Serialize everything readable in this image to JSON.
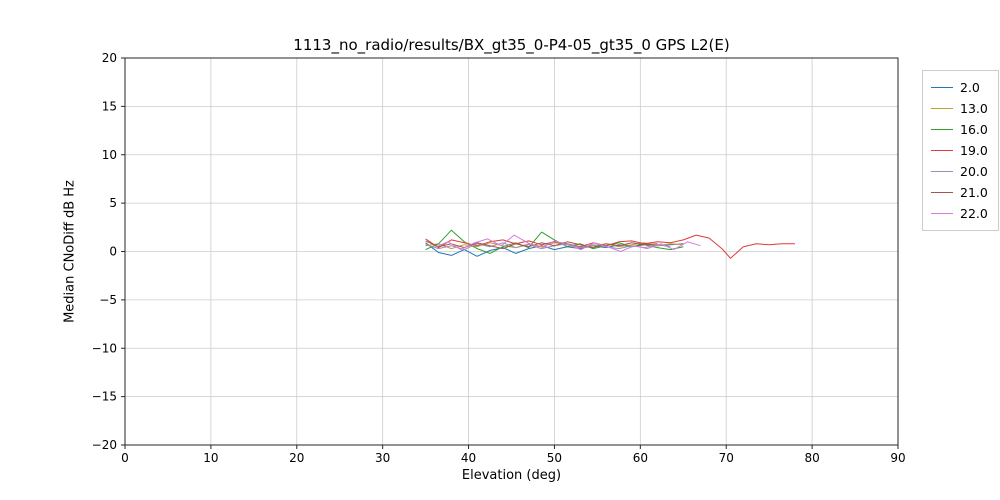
{
  "chart_data": {
    "type": "line",
    "title": "1113_no_radio/results/BX_gt35_0-P4-05_gt35_0 GPS L2(E)",
    "xlabel": "Elevation (deg)",
    "ylabel": "Median CNoDiff dB Hz",
    "xlim": [
      0,
      90
    ],
    "ylim": [
      -20,
      20
    ],
    "xticks": [
      0,
      10,
      20,
      30,
      40,
      50,
      60,
      70,
      80,
      90
    ],
    "yticks": [
      -20,
      -15,
      -10,
      -5,
      0,
      5,
      10,
      15,
      20
    ],
    "grid": true,
    "legend_position": "outside-upper-right",
    "frame_color": "#262626",
    "grid_color": "#cccccc",
    "series": [
      {
        "name": "2.0",
        "color": "#1f77b4",
        "x": [
          35,
          36.5,
          38,
          39.5,
          41,
          42.5,
          44,
          45.5,
          47,
          48.5,
          50,
          51.5,
          53,
          54.5,
          56,
          57.5,
          59,
          60.5,
          62,
          63.5,
          65
        ],
        "y": [
          0.9,
          -0.1,
          -0.4,
          0.2,
          -0.5,
          0.1,
          0.4,
          -0.2,
          0.3,
          0.6,
          0.2,
          0.5,
          0.3,
          0.6,
          0.4,
          0.7,
          0.5,
          0.8,
          0.6,
          0.7,
          0.8
        ]
      },
      {
        "name": "13.0",
        "color": "#bfa035",
        "x": [
          35,
          36.5,
          38,
          39.5,
          41,
          42.5,
          44,
          45.5,
          47,
          48.5,
          50,
          51.5,
          53,
          54.5,
          56,
          57.5,
          59,
          60.5,
          62,
          63.5,
          65
        ],
        "y": [
          0.6,
          0.8,
          0.3,
          0.7,
          0.5,
          0.9,
          0.6,
          0.4,
          0.8,
          0.5,
          0.9,
          0.7,
          0.4,
          0.6,
          0.8,
          0.5,
          0.7,
          0.9,
          0.6,
          0.8,
          0.7
        ]
      },
      {
        "name": "16.0",
        "color": "#2ca02c",
        "x": [
          35,
          36.5,
          38,
          39.5,
          41,
          42.5,
          44,
          45.5,
          47,
          48.5,
          50,
          51.5,
          53,
          54.5,
          56,
          57.5,
          59,
          60.5,
          62,
          63.5,
          65
        ],
        "y": [
          0.2,
          0.8,
          2.2,
          1.0,
          0.3,
          -0.2,
          0.5,
          0.9,
          0.4,
          2.0,
          1.2,
          0.5,
          0.8,
          0.3,
          0.6,
          0.9,
          0.5,
          0.7,
          0.4,
          0.2,
          0.5
        ]
      },
      {
        "name": "19.0",
        "color": "#e03a3a",
        "x": [
          35,
          36.5,
          38,
          39.5,
          41,
          42.5,
          44,
          45.5,
          47,
          48.5,
          50,
          51.5,
          53,
          54.5,
          56,
          57.5,
          59,
          60.5,
          62,
          63.5,
          65,
          66.5,
          68,
          69.5,
          70.5,
          72,
          73.5,
          75,
          76.5,
          78
        ],
        "y": [
          1.3,
          0.4,
          1.2,
          0.9,
          0.6,
          1.0,
          1.2,
          0.8,
          1.1,
          0.7,
          1.0,
          0.8,
          0.5,
          0.9,
          0.6,
          1.0,
          1.1,
          0.8,
          1.0,
          0.9,
          1.2,
          1.7,
          1.4,
          0.3,
          -0.7,
          0.5,
          0.8,
          0.7,
          0.8,
          0.8
        ]
      },
      {
        "name": "20.0",
        "color": "#9b8fb9",
        "x": [
          35,
          36.5,
          38,
          39.5,
          41,
          42.5,
          44,
          45.5,
          47,
          48.5,
          50,
          51.5,
          53,
          54.5,
          56,
          57.5,
          59,
          60.5,
          62,
          63.5
        ],
        "y": [
          0.7,
          0.3,
          0.6,
          0.2,
          0.8,
          0.5,
          0.9,
          0.4,
          0.7,
          0.3,
          0.6,
          0.8,
          0.4,
          0.7,
          0.5,
          0.3,
          0.6,
          0.4,
          0.7,
          0.5
        ]
      },
      {
        "name": "21.0",
        "color": "#a0564b",
        "x": [
          35,
          36.5,
          38,
          39.5,
          41,
          42.5,
          44,
          45.5,
          47,
          48.5,
          50,
          51.5,
          53,
          54.5,
          56,
          57.5,
          59,
          60.5,
          62
        ],
        "y": [
          1.1,
          0.5,
          0.8,
          0.4,
          0.9,
          0.6,
          0.3,
          0.8,
          0.5,
          0.9,
          0.6,
          1.0,
          0.7,
          0.4,
          0.8,
          0.6,
          0.9,
          0.7,
          0.8
        ]
      },
      {
        "name": "22.0",
        "color": "#d678de",
        "x": [
          36,
          37.6,
          39.1,
          40.7,
          42.2,
          43.8,
          45.3,
          46.9,
          48.4,
          50,
          51.5,
          53.1,
          54.6,
          56.2,
          57.7,
          59.3,
          60.8,
          62.4,
          63.9,
          65.5,
          67
        ],
        "y": [
          0.4,
          1.0,
          0.2,
          0.9,
          1.3,
          0.6,
          1.7,
          0.9,
          0.3,
          1.1,
          0.7,
          0.2,
          0.9,
          0.5,
          0.0,
          0.6,
          0.3,
          0.8,
          0.2,
          1.0,
          0.6
        ]
      }
    ]
  }
}
